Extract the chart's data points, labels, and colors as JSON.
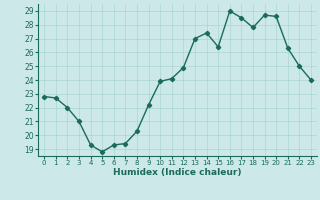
{
  "x": [
    0,
    1,
    2,
    3,
    4,
    5,
    6,
    7,
    8,
    9,
    10,
    11,
    12,
    13,
    14,
    15,
    16,
    17,
    18,
    19,
    20,
    21,
    22,
    23
  ],
  "y": [
    22.8,
    22.7,
    22.0,
    21.0,
    19.3,
    18.8,
    19.3,
    19.4,
    20.3,
    22.2,
    23.9,
    24.1,
    24.9,
    27.0,
    27.4,
    26.4,
    29.0,
    28.5,
    27.8,
    28.7,
    28.6,
    26.3,
    25.0,
    24.0
  ],
  "xlabel": "Humidex (Indice chaleur)",
  "xlim": [
    -0.5,
    23.5
  ],
  "ylim": [
    18.5,
    29.5
  ],
  "yticks": [
    19,
    20,
    21,
    22,
    23,
    24,
    25,
    26,
    27,
    28,
    29
  ],
  "xticks": [
    0,
    1,
    2,
    3,
    4,
    5,
    6,
    7,
    8,
    9,
    10,
    11,
    12,
    13,
    14,
    15,
    16,
    17,
    18,
    19,
    20,
    21,
    22,
    23
  ],
  "line_color": "#1a6b5a",
  "marker": "D",
  "marker_size": 2.2,
  "bg_color": "#cce8e8",
  "grid_color": "#aad4d4",
  "tick_label_color": "#1a6b5a",
  "line_width": 1.0
}
